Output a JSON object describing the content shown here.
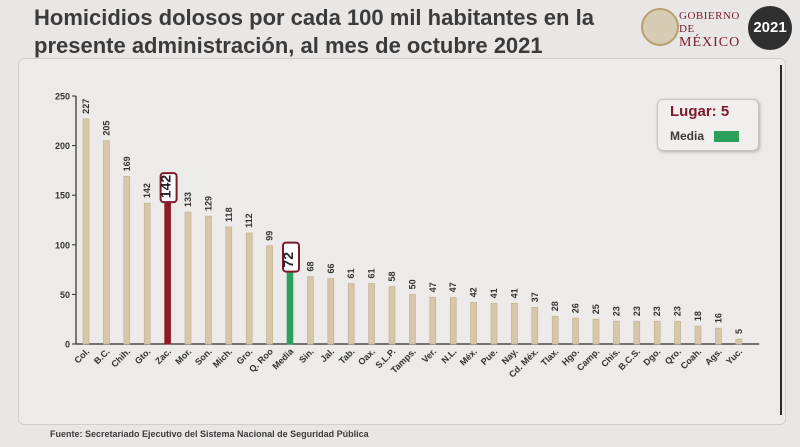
{
  "header": {
    "title_line1": "Homicidios dolosos por cada 100 mil habitantes en la",
    "title_line2": "presente administración, al mes de octubre 2021"
  },
  "logo": {
    "line1": "GOBIERNO DE",
    "line2": "MÉXICO",
    "badge_year": "2021"
  },
  "legend": {
    "lugar": "Lugar: 5",
    "media": "Media",
    "media_color": "#2aa05a"
  },
  "source": "Fuente: Secretariado Ejecutivo del Sistema Nacional de Seguridad Pública",
  "colors": {
    "bar": "#d6c7a8",
    "bar_stroke": "#bfae8c",
    "highlight": "#8e1b22",
    "media": "#2aa05a",
    "label_box": "#7a1a2a"
  },
  "chart_data": {
    "type": "bar",
    "title": "Homicidios dolosos por cada 100 mil habitantes en la presente administración, al mes de octubre 2021",
    "ylim": [
      0,
      250
    ],
    "yticks": [
      0,
      50,
      100,
      150,
      200,
      250
    ],
    "grid": false,
    "categories": [
      "Col.",
      "B.C.",
      "Chih.",
      "Gto.",
      "Zac.",
      "Mor.",
      "Son.",
      "Mich.",
      "Gro.",
      "Q. Roo",
      "Media",
      "Sin.",
      "Jal.",
      "Tab.",
      "Oax.",
      "S.L.P.",
      "Tamps.",
      "Ver.",
      "N.L.",
      "Méx.",
      "Pue.",
      "Nay.",
      "Cd. Méx.",
      "Tlax.",
      "Hgo.",
      "Camp.",
      "Chis.",
      "B.C.S.",
      "Dgo.",
      "Qro.",
      "Coah.",
      "Ags.",
      "Yuc."
    ],
    "values": [
      227,
      205,
      169,
      142,
      142,
      133,
      129,
      118,
      112,
      99,
      72,
      68,
      66,
      61,
      61,
      58,
      50,
      47,
      47,
      42,
      41,
      41,
      37,
      28,
      26,
      25,
      23,
      23,
      23,
      23,
      18,
      16,
      5
    ],
    "highlight_index": 4,
    "media_index": 10
  }
}
